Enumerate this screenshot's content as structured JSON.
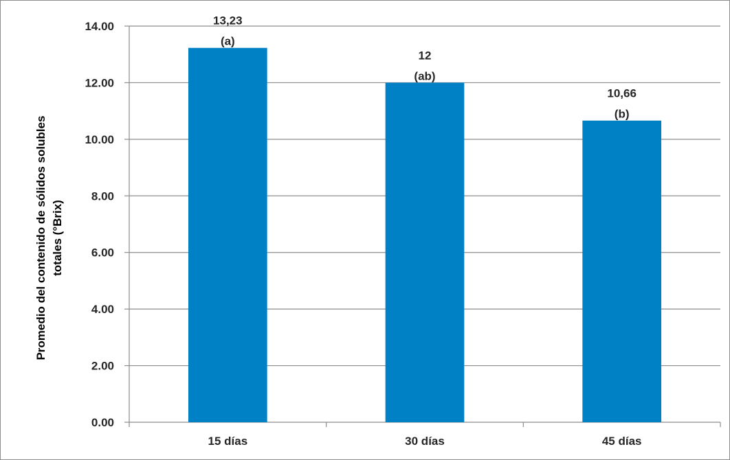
{
  "chart_data": {
    "type": "bar",
    "categories": [
      "15 días",
      "30 días",
      "45 días"
    ],
    "values": [
      13.23,
      12,
      10.66
    ],
    "value_labels": [
      "13,23",
      "12",
      "10,66"
    ],
    "group_labels": [
      "(a)",
      "(ab)",
      "(b)"
    ],
    "title": "",
    "xlabel": "",
    "ylabel_lines": [
      "Promedio del contenido de sólidos solubles",
      "totales (°Brix)"
    ],
    "ylim": [
      0,
      14
    ],
    "yticks": [
      "0.00",
      "2.00",
      "4.00",
      "6.00",
      "8.00",
      "10.00",
      "12.00",
      "14.00"
    ],
    "grid": "horizontal",
    "legend": "none",
    "bar_color": "#0081C6",
    "grid_color": "#8C8C8C"
  }
}
